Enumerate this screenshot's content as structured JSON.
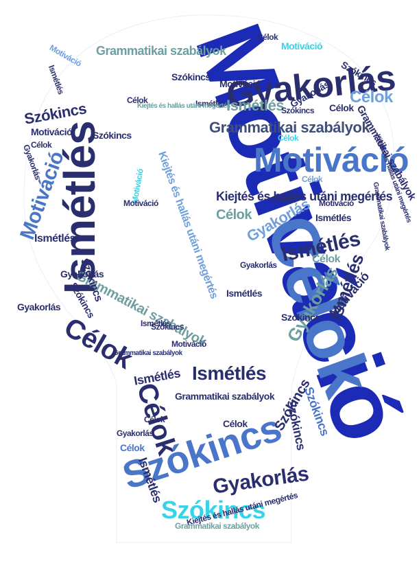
{
  "image_title": "Word cloud – light bulb shape",
  "colors": {
    "navy": "#2b2e6e",
    "royal": "#1b2bb5",
    "blue": "#4a76c9",
    "sky": "#6fa0dc",
    "cyan": "#38d3e8",
    "teal": "#6e9fa0",
    "slate": "#3f4f7a",
    "bg": "#ffffff"
  },
  "words": [
    {
      "id": "motivacio-main",
      "text": "Motiváció",
      "color": "royal"
    },
    {
      "id": "celok-big",
      "text": "Célok",
      "color": "blue"
    },
    {
      "id": "ismetles-big",
      "text": "Ismétlés",
      "color": "navy"
    },
    {
      "id": "gyakorlas-top",
      "text": "Gyakorlás",
      "color": "navy"
    },
    {
      "id": "motivacio-mid",
      "text": "Motiváció",
      "color": "blue"
    },
    {
      "id": "grammatikai-1",
      "text": "Grammatikai szabályok",
      "color": "slate"
    },
    {
      "id": "grammatikai-2",
      "text": "Grammatikai szabályok",
      "color": "teal"
    },
    {
      "id": "kiejtes-1",
      "text": "Kiejtés és hallás utáni megértés",
      "color": "navy"
    },
    {
      "id": "szokincs-big",
      "text": "Szókincs",
      "color": "blue"
    },
    {
      "id": "szokincs-cyan",
      "text": "Szókincs",
      "color": "cyan"
    },
    {
      "id": "gyakorlas-bottom",
      "text": "Gyakorlás",
      "color": "navy"
    },
    {
      "id": "celok-bottom",
      "text": "Célok",
      "color": "navy"
    },
    {
      "id": "ismetles-mid",
      "text": "Ismétlés",
      "color": "navy"
    },
    {
      "id": "motivacio-left",
      "text": "Motiváció",
      "color": "blue"
    },
    {
      "id": "celok-left",
      "text": "Célok",
      "color": "navy"
    },
    {
      "id": "ismetles-bottom",
      "text": "Ismétlés",
      "color": "navy"
    },
    {
      "id": "celok-top",
      "text": "Célok",
      "color": "sky"
    },
    {
      "id": "gyakorlas-right",
      "text": "Gyakorlás",
      "color": "teal"
    },
    {
      "id": "ismetles-right",
      "text": "Ismétlés",
      "color": "navy"
    },
    {
      "id": "ismetles-top",
      "text": "Ismétlés",
      "color": "teal"
    },
    {
      "id": "grammatikai-left",
      "text": "Grammatikai szabályok",
      "color": "teal"
    },
    {
      "id": "kiejtes-left",
      "text": "Kiejtés és hallás utáni megértés",
      "color": "sky"
    },
    {
      "id": "grammatikai-right",
      "text": "Grammatikai szabályok",
      "color": "navy"
    },
    {
      "id": "motivacio-right",
      "text": "Motiváció",
      "color": "navy"
    },
    {
      "id": "szokincs-right",
      "text": "Szókincs",
      "color": "navy"
    },
    {
      "id": "szokincs-right2",
      "text": "Szókincs",
      "color": "navy"
    },
    {
      "id": "gyakorlas-small",
      "text": "Gyakorlás",
      "color": "navy"
    },
    {
      "id": "gyakorlas-mid",
      "text": "Gyakorlás",
      "color": "sky"
    },
    {
      "id": "celok-mid",
      "text": "Célok",
      "color": "teal"
    },
    {
      "id": "celok-mid2",
      "text": "Célok",
      "color": "navy"
    },
    {
      "id": "szokincs-left",
      "text": "Szókincs",
      "color": "navy"
    },
    {
      "id": "szokincs-left2",
      "text": "Szókincs",
      "color": "navy"
    },
    {
      "id": "ismetles-small-1",
      "text": "Ismétlés",
      "color": "navy"
    },
    {
      "id": "celok-small-1",
      "text": "Célok",
      "color": "teal"
    },
    {
      "id": "motivacio-small-1",
      "text": "Motiváció",
      "color": "sky"
    },
    {
      "id": "szokincs-top",
      "text": "Szókincs",
      "color": "navy"
    },
    {
      "id": "grammatikai-bottom",
      "text": "Grammatikai szabályok",
      "color": "navy"
    },
    {
      "id": "kiejtes-bottom",
      "text": "Kiejtés és hallás utáni megértés",
      "color": "navy"
    },
    {
      "id": "grammatikai-bottom2",
      "text": "Grammatikai szabályok",
      "color": "teal"
    },
    {
      "id": "ismetles-bottom2",
      "text": "Ismétlés",
      "color": "navy"
    },
    {
      "id": "celok-bottom2",
      "text": "Célok",
      "color": "navy"
    },
    {
      "id": "szokincs-bottom3",
      "text": "Szókincs",
      "color": "blue"
    },
    {
      "id": "ismetles-bottom3",
      "text": "Ismétlés",
      "color": "navy"
    },
    {
      "id": "motivacio-bottom",
      "text": "Motiváció",
      "color": "navy"
    },
    {
      "id": "celok-bottom3",
      "text": "Célok",
      "color": "blue"
    },
    {
      "id": "gyakorlas-bottom2",
      "text": "Gyakorlás",
      "color": "navy"
    },
    {
      "id": "szokincs-small",
      "text": "Szókincs",
      "color": "navy"
    },
    {
      "id": "ismetles-small-2",
      "text": "Ismétlés",
      "color": "navy"
    },
    {
      "id": "motivacio-small-2",
      "text": "Motiváció",
      "color": "cyan"
    },
    {
      "id": "celok-small-2",
      "text": "Célok",
      "color": "navy"
    },
    {
      "id": "gyakorlas-small-2",
      "text": "Gyakorlás",
      "color": "navy"
    },
    {
      "id": "kiejtes-small",
      "text": "Kiejtés és hallás utáni megértés",
      "color": "teal"
    },
    {
      "id": "celok-small-3",
      "text": "Célok",
      "color": "navy"
    },
    {
      "id": "motivacio-small-3",
      "text": "Motiváció",
      "color": "navy"
    },
    {
      "id": "motivacio-small-4",
      "text": "Motiváció",
      "color": "cyan"
    },
    {
      "id": "szokincs-small-2",
      "text": "Szókincs",
      "color": "navy"
    },
    {
      "id": "celok-small-4",
      "text": "Célok",
      "color": "cyan"
    },
    {
      "id": "gyakorlas-small-3",
      "text": "Gyakorlás",
      "color": "navy"
    },
    {
      "id": "ismetles-small-3",
      "text": "Ismétlés",
      "color": "navy"
    },
    {
      "id": "szokincs-small-3",
      "text": "Szókincs",
      "color": "navy"
    },
    {
      "id": "celok-small-5",
      "text": "Célok",
      "color": "sky"
    },
    {
      "id": "motivacio-small-5",
      "text": "Motiváció",
      "color": "navy"
    },
    {
      "id": "grammatikai-small",
      "text": "Grammatikai szabályok",
      "color": "navy"
    },
    {
      "id": "kiejtes-small-2",
      "text": "Kiejtés és hallás utáni megértés",
      "color": "navy"
    },
    {
      "id": "ismetles-small-4",
      "text": "Ismétlés",
      "color": "navy"
    },
    {
      "id": "celok-small-6",
      "text": "Célok",
      "color": "navy"
    },
    {
      "id": "szokincs-small-4",
      "text": "Szókincs",
      "color": "navy"
    },
    {
      "id": "motivacio-small-6",
      "text": "Motiváció",
      "color": "navy"
    },
    {
      "id": "gyakorlas-small-4",
      "text": "Gyakorlás",
      "color": "navy"
    },
    {
      "id": "celok-small-7",
      "text": "Célok",
      "color": "navy"
    },
    {
      "id": "szokincs-small-5",
      "text": "Szókincs",
      "color": "navy"
    },
    {
      "id": "ismetles-small-5",
      "text": "Ismétlés",
      "color": "navy"
    },
    {
      "id": "grammatikai-small-2",
      "text": "Grammatikai szabályok",
      "color": "navy"
    },
    {
      "id": "motivacio-small-7",
      "text": "Motiváció",
      "color": "navy"
    },
    {
      "id": "celok-small-8",
      "text": "Célok",
      "color": "navy"
    },
    {
      "id": "ismetles-small-6",
      "text": "Ismétlés",
      "color": "navy"
    },
    {
      "id": "gyakorlas-small-5",
      "text": "Gyakorlás",
      "color": "navy"
    },
    {
      "id": "szokincs-small-6",
      "text": "Szókincs",
      "color": "navy"
    }
  ]
}
